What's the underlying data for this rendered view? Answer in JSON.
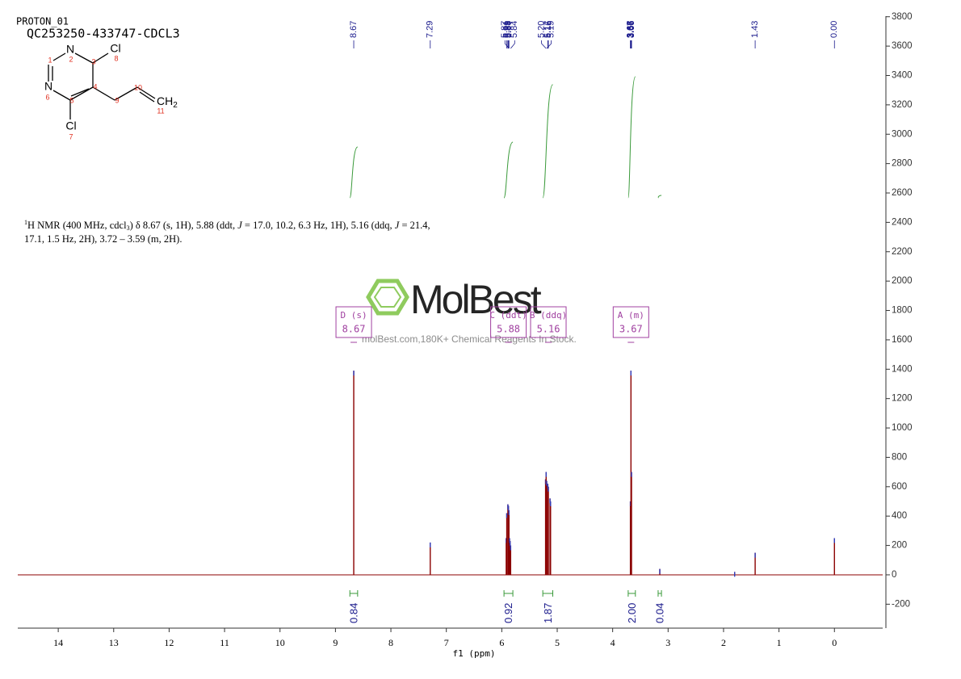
{
  "header": {
    "experiment": "PROTON_01",
    "sample": "QC253250-433747-CDCL3"
  },
  "structure": {
    "atoms": [
      "N",
      "N",
      "Cl",
      "Cl",
      {
        "text": "CH",
        "sub": "2"
      }
    ],
    "atom_numbers": [
      1,
      2,
      3,
      4,
      5,
      6,
      7,
      8,
      9,
      10,
      11
    ]
  },
  "description": [
    [
      {
        "text": "1",
        "style": "sup"
      },
      "H NMR (400 MHz, cdcl",
      {
        "text": "3",
        "style": "sub"
      },
      ") δ 8.67 (s, 1H), 5.88 (ddt, ",
      {
        "text": "J",
        "style": "italic"
      },
      " = 17.0, 10.2, 6.3 Hz, 1H), 5.16 (ddq, ",
      {
        "text": "J",
        "style": "italic"
      },
      " = 21.4,"
    ],
    [
      "17.1, 1.5 Hz, 2H), 3.72 – 3.59 (m, 2H)."
    ]
  ],
  "watermark": {
    "brand": "MolBest",
    "tagline": "molBest.com,180K+ Chemical Reagents In Stock."
  },
  "chart_data": {
    "type": "nmr",
    "x_label": "f1 (ppm)",
    "xlim": [
      14.73,
      -0.87
    ],
    "xticks": [
      14,
      13,
      12,
      11,
      10,
      9,
      8,
      7,
      6,
      5,
      4,
      3,
      2,
      1,
      0
    ],
    "ylim": [
      -363,
      3804
    ],
    "yticks": [
      -200,
      0,
      200,
      400,
      600,
      800,
      1000,
      1200,
      1400,
      1600,
      1800,
      2000,
      2200,
      2400,
      2600,
      2800,
      3000,
      3200,
      3400,
      3600,
      3800
    ],
    "color": "#8b0000",
    "peaks": {
      "x": [
        8.67,
        7.29,
        5.92,
        5.91,
        5.89,
        5.88,
        5.87,
        5.86,
        5.85,
        5.84,
        5.21,
        5.2,
        5.19,
        5.17,
        5.16,
        5.13,
        5.12,
        3.68,
        3.67,
        3.66,
        3.15,
        1.8,
        1.43,
        0
      ],
      "values": [
        1390,
        220,
        250,
        420,
        480,
        470,
        440,
        250,
        230,
        200,
        650,
        700,
        640,
        620,
        600,
        520,
        500,
        500,
        1390,
        700,
        40,
        20,
        150,
        250
      ]
    },
    "peak_labels": [
      8.67,
      7.29,
      5.91,
      5.89,
      5.88,
      5.87,
      5.87,
      5.84,
      {
        "value": 5.2,
        "label": "5.20"
      },
      5.19,
      5.17,
      5.16,
      3.68,
      3.67,
      3.67,
      3.67,
      3.66,
      3.66,
      1.43,
      {
        "value": 0,
        "label": "0.00"
      }
    ],
    "integrals": [
      {
        "from": 8.74,
        "to": 8.6,
        "value": 0.84
      },
      {
        "from": 5.96,
        "to": 5.8,
        "value": 0.92
      },
      {
        "from": 5.26,
        "to": 5.08,
        "value": 1.87
      },
      {
        "from": 3.72,
        "to": 3.59,
        "value": 2.0,
        "label": "2.00"
      },
      {
        "from": 3.18,
        "to": 3.12,
        "value": 0.04
      }
    ],
    "multiplets": [
      {
        "name": "D (s)",
        "shift": 8.67
      },
      {
        "name": "C (ddt)",
        "shift": 5.88
      },
      {
        "name": "B (ddq)",
        "shift": 5.16
      },
      {
        "name": "A (m)",
        "shift": 3.67
      }
    ]
  }
}
